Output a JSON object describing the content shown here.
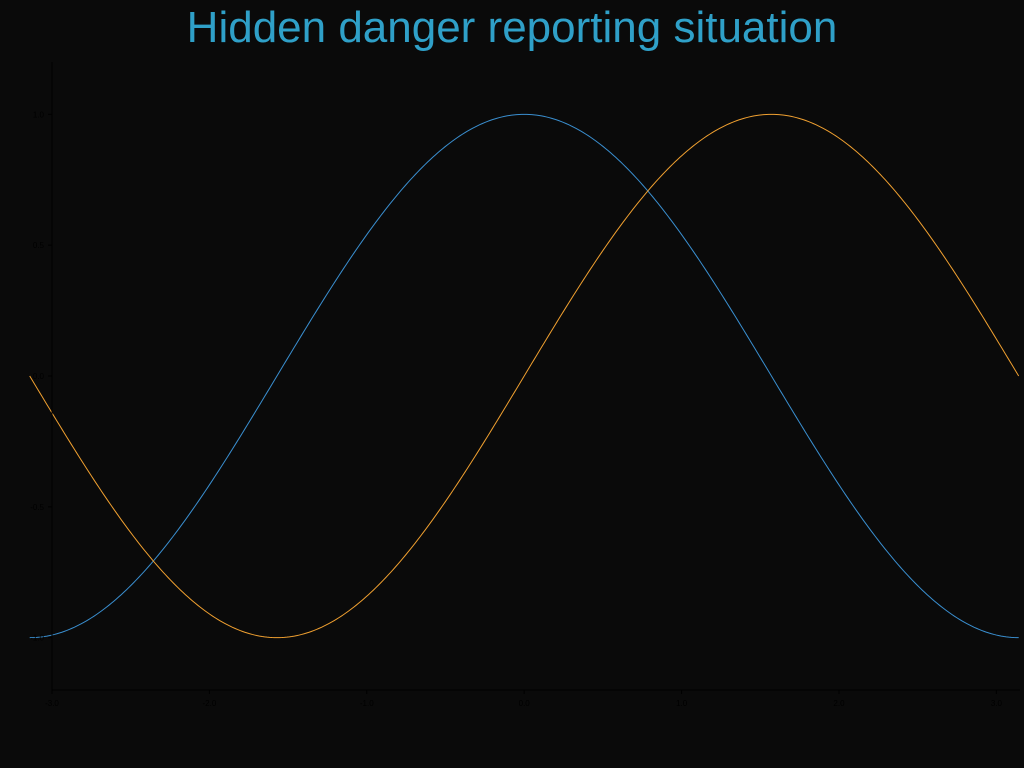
{
  "chart_data": {
    "type": "line",
    "title": "Hidden danger reporting situation",
    "xlabel": "",
    "ylabel": "",
    "xlim": [
      -3.0,
      3.15
    ],
    "ylim": [
      -1.2,
      1.2
    ],
    "xticks": [
      -3.0,
      -2.0,
      -1.0,
      0.0,
      1.0,
      2.0,
      3.0
    ],
    "xtick_labels": [
      "-3.0",
      "-2.0",
      "-1.0",
      "0.0",
      "1.0",
      "2.0",
      "3.0"
    ],
    "yticks": [
      -1.0,
      -0.5,
      0.0,
      0.5,
      1.0
    ],
    "ytick_labels": [
      "-1.0",
      "-0.5",
      "0.0",
      "0.5",
      "1.0"
    ],
    "x_range": [
      -3.14159,
      3.14159
    ],
    "series": [
      {
        "function": "cos(x)",
        "color": "#3a8fd0",
        "x": [
          -3.1416,
          -2.3562,
          -1.5708,
          -0.7854,
          0.0,
          0.7854,
          1.5708,
          2.3562,
          3.1416
        ],
        "values": [
          -1.0,
          -0.707,
          0.0,
          0.707,
          1.0,
          0.707,
          0.0,
          -0.707,
          -1.0
        ]
      },
      {
        "function": "sin(x)",
        "color": "#f0a030",
        "x": [
          -3.1416,
          -2.3562,
          -1.5708,
          -0.7854,
          0.0,
          0.7854,
          1.5708,
          2.3562,
          3.1416
        ],
        "values": [
          0.0,
          -0.707,
          -1.0,
          -0.707,
          0.0,
          0.707,
          1.0,
          0.707,
          0.0
        ]
      }
    ],
    "grid": false,
    "legend": "none"
  },
  "colors": {
    "background": "#0a0a0a",
    "title": "#2fa0c8",
    "axis": "#000000"
  }
}
